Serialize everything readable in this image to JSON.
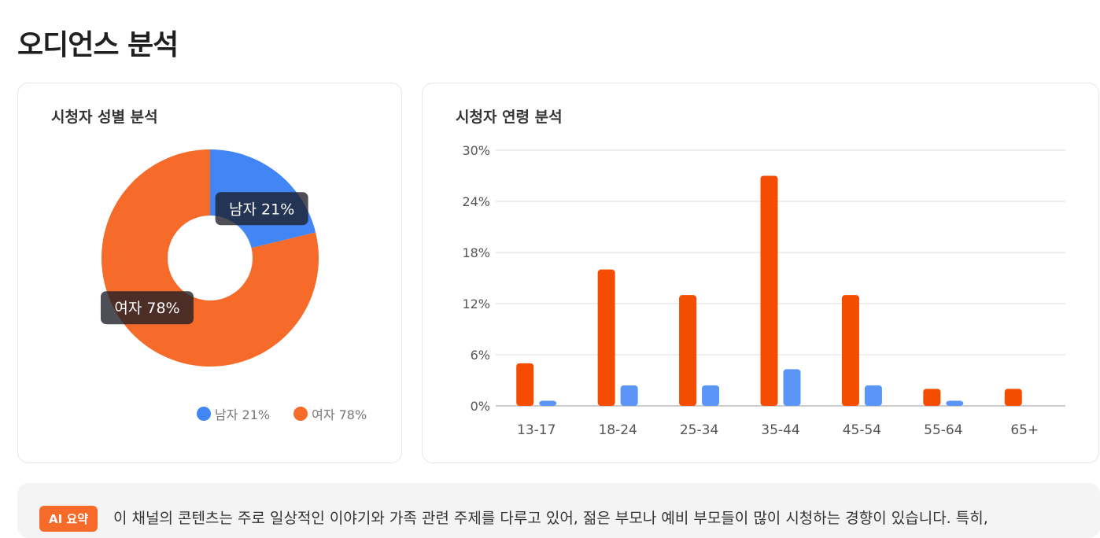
{
  "page": {
    "title": "오디언스 분석"
  },
  "gender_card": {
    "title": "시청자 성별 분석",
    "legend": [
      {
        "label": "남자 21%",
        "color": "#4285f4"
      },
      {
        "label": "여자 78%",
        "color": "#f76b2a"
      }
    ]
  },
  "age_card": {
    "title": "시청자 연령 분석"
  },
  "summary": {
    "badge": "AI 요약",
    "text": "이 채널의 콘텐츠는 주로 일상적인 이야기와 가족 관련 주제를 다루고 있어, 젊은 부모나 예비 부모들이 많이 시청하는 경향이 있습니다. 특히,"
  },
  "chart_data": [
    {
      "type": "pie",
      "variant": "donut",
      "title": "시청자 성별 분석",
      "slices": [
        {
          "name": "남자",
          "value": 21,
          "label": "남자 21%",
          "color": "#4285f4"
        },
        {
          "name": "여자",
          "value": 78,
          "label": "여자 78%",
          "color": "#f76b2a"
        }
      ],
      "legend": "bottom-right"
    },
    {
      "type": "bar",
      "title": "시청자 연령 분석",
      "categories": [
        "13-17",
        "18-24",
        "25-34",
        "35-44",
        "45-54",
        "55-64",
        "65+"
      ],
      "series": [
        {
          "values": [
            5,
            16,
            13,
            27,
            13,
            2,
            2
          ],
          "color": "#f44c00"
        },
        {
          "values": [
            0.6,
            2.4,
            2.4,
            4.3,
            2.4,
            0.6,
            0
          ],
          "color": "#5b95f8"
        }
      ],
      "yticks": [
        "0%",
        "6%",
        "12%",
        "18%",
        "24%",
        "30%"
      ],
      "ylim": [
        0,
        30
      ],
      "grid": true
    }
  ]
}
